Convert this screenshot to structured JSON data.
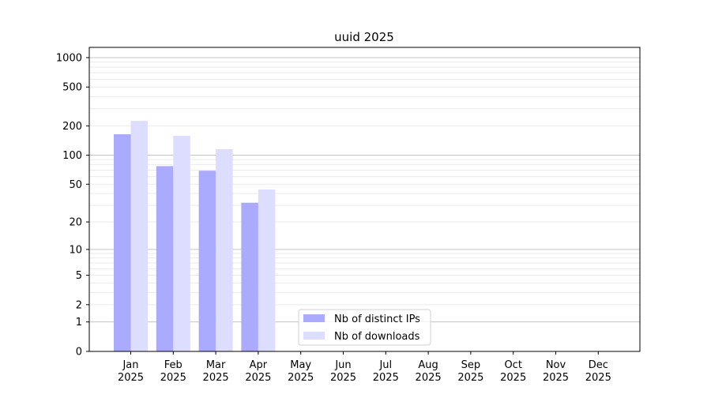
{
  "chart_data": {
    "type": "bar",
    "title": "uuid 2025",
    "xlabel": "",
    "ylabel": "",
    "yscale": "log10(y+1)",
    "ylim": [
      0,
      1000
    ],
    "yticks": [
      0,
      1,
      2,
      5,
      10,
      20,
      50,
      100,
      200,
      500,
      1000
    ],
    "grid": true,
    "legend_position": "bottom-center",
    "categories": [
      "Jan\n2025",
      "Feb\n2025",
      "Mar\n2025",
      "Apr\n2025",
      "May\n2025",
      "Jun\n2025",
      "Jul\n2025",
      "Aug\n2025",
      "Sep\n2025",
      "Oct\n2025",
      "Nov\n2025",
      "Dec\n2025"
    ],
    "series": [
      {
        "name": "Nb of distinct IPs",
        "color": "#aaaaff",
        "values": [
          164,
          77,
          69,
          32,
          0,
          0,
          0,
          0,
          0,
          0,
          0,
          0
        ]
      },
      {
        "name": "Nb of downloads",
        "color": "#ddddff",
        "values": [
          225,
          158,
          115,
          44,
          0,
          0,
          0,
          0,
          0,
          0,
          0,
          0
        ]
      }
    ]
  }
}
